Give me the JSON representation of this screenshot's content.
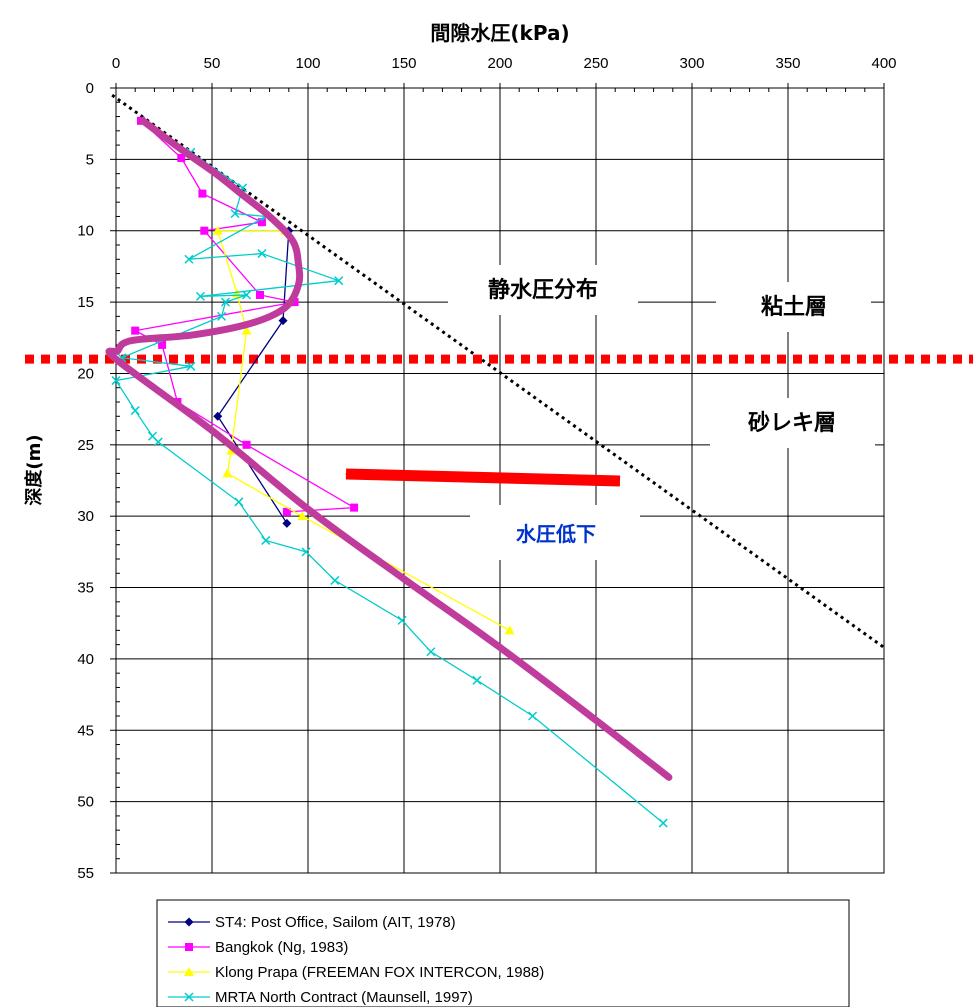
{
  "chart_data": {
    "type": "scatter",
    "title": "",
    "xlabel": "間隙水圧(kPa)",
    "ylabel": "深度(m)",
    "x_axis_position": "top",
    "xlim": [
      0,
      400
    ],
    "ylim": [
      0,
      55
    ],
    "y_inverted": true,
    "x_ticks": [
      "0",
      "50",
      "100",
      "150",
      "200",
      "250",
      "300",
      "350",
      "400"
    ],
    "y_ticks": [
      "0",
      "5",
      "10",
      "15",
      "20",
      "25",
      "30",
      "35",
      "40",
      "45",
      "50",
      "55"
    ],
    "grid": true,
    "legend_position": "bottom",
    "series": [
      {
        "name": "ST4: Post Office, Sailom (AIT, 1978)",
        "color": "#000080",
        "marker": "diamond",
        "points": [
          [
            90,
            10
          ],
          [
            87,
            16.3
          ],
          [
            53,
            23
          ],
          [
            89,
            30.5
          ]
        ]
      },
      {
        "name": "Bangkok (Ng, 1983)",
        "color": "#ff00ff",
        "marker": "square",
        "points": [
          [
            13,
            2.3
          ],
          [
            34,
            4.9
          ],
          [
            45,
            7.4
          ],
          [
            76,
            9.4
          ],
          [
            46,
            10
          ],
          [
            75,
            14.5
          ],
          [
            93,
            15
          ],
          [
            10,
            17
          ],
          [
            24,
            18
          ],
          [
            32,
            22
          ],
          [
            68,
            25
          ],
          [
            124,
            29.4
          ],
          [
            89,
            29.7
          ]
        ]
      },
      {
        "name": "Klong Prapa (FREEMAN FOX INTERCON, 1988)",
        "color": "#ffff00",
        "marker": "triangle",
        "points": [
          [
            88,
            10
          ],
          [
            53,
            10
          ],
          [
            63,
            14.4
          ],
          [
            68,
            17
          ],
          [
            60,
            25.4
          ],
          [
            58,
            27
          ],
          [
            97,
            30
          ],
          [
            205,
            38
          ]
        ]
      },
      {
        "name": "MRTA North Contract (Maunsell, 1997)",
        "color": "#00cccc",
        "marker": "x",
        "points": [
          [
            39,
            4.5
          ],
          [
            66,
            7
          ],
          [
            62,
            8.8
          ],
          [
            78,
            9
          ],
          [
            38,
            12
          ],
          [
            76,
            11.6
          ],
          [
            116,
            13.5
          ],
          [
            44,
            14.6
          ],
          [
            68,
            14.5
          ],
          [
            57,
            15
          ],
          [
            55,
            16
          ],
          [
            3,
            18.9
          ],
          [
            39,
            19.5
          ],
          [
            0,
            20.5
          ],
          [
            10,
            22.6
          ],
          [
            19,
            24.4
          ],
          [
            22,
            24.8
          ],
          [
            64,
            29
          ],
          [
            78,
            31.7
          ],
          [
            99,
            32.5
          ],
          [
            114,
            34.5
          ],
          [
            149,
            37.3
          ],
          [
            164,
            39.5
          ],
          [
            188,
            41.5
          ],
          [
            217,
            44
          ],
          [
            285,
            51.5
          ]
        ]
      }
    ],
    "trend_curve": {
      "color": "#c03c9c",
      "points": [
        [
          14,
          2.3
        ],
        [
          34,
          4.3
        ],
        [
          52,
          6
        ],
        [
          66,
          7.5
        ],
        [
          80,
          9
        ],
        [
          92,
          10.7
        ],
        [
          95,
          12.3
        ],
        [
          95,
          13.8
        ],
        [
          88,
          15.4
        ],
        [
          70,
          16.5
        ],
        [
          40,
          17.3
        ],
        [
          8,
          17.7
        ],
        [
          1,
          18.4
        ],
        [
          0,
          19
        ],
        [
          50,
          24
        ],
        [
          100,
          29.5
        ],
        [
          150,
          34.4
        ],
        [
          200,
          39.2
        ],
        [
          250,
          44.3
        ],
        [
          288,
          48.3
        ]
      ]
    },
    "hydrostatic_line": {
      "color": "#000000",
      "style": "dotted",
      "points": [
        [
          -2,
          0.5
        ],
        [
          400,
          39.2
        ]
      ]
    },
    "layer_boundary": {
      "depth": 19,
      "color": "#ff0000",
      "style": "dotted"
    },
    "annotations": {
      "hydrostatic": "静水圧分布",
      "clay": "粘土層",
      "gravel": "砂レキ層",
      "drop": "水圧低下",
      "drop_color": "#0033cc",
      "arrow_color": "#ff0000"
    }
  }
}
